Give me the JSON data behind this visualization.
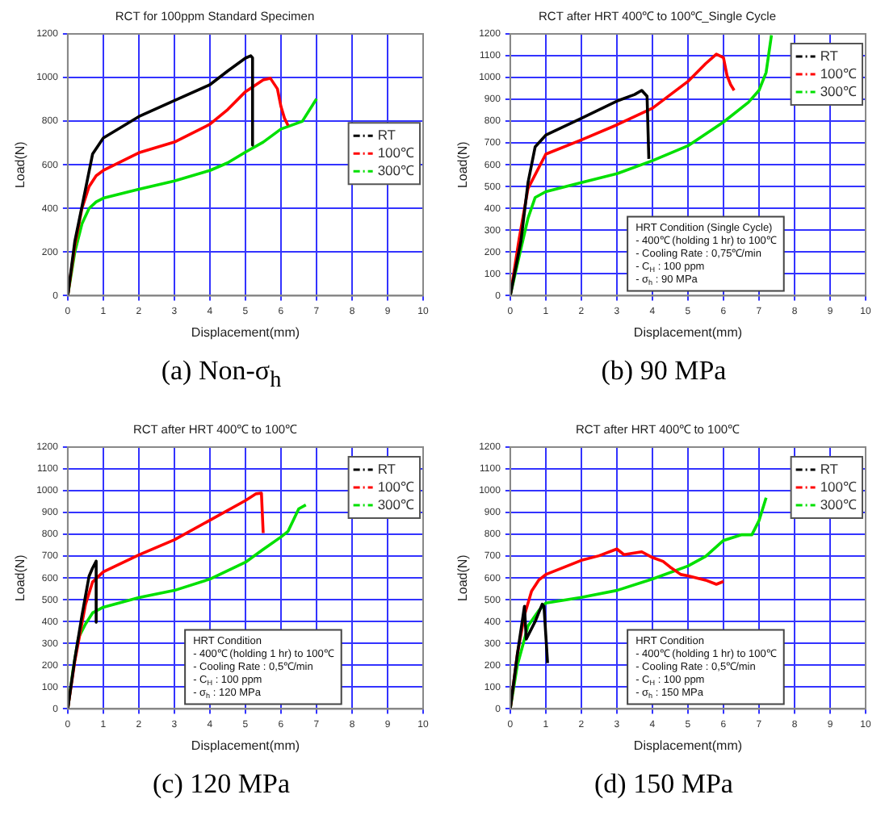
{
  "chart_data": [
    {
      "type": "line",
      "title": "RCT for 100ppm Standard Specimen",
      "subtitle": "(a) Non-σ$_{h}$",
      "xlabel": "Displacement(mm)",
      "ylabel": "Load(N)",
      "xlim": [
        0,
        10
      ],
      "xticks": [
        0,
        1,
        2,
        3,
        4,
        5,
        6,
        7,
        8,
        9,
        10
      ],
      "ylim": [
        0,
        1200
      ],
      "yticks": [
        0,
        200,
        400,
        600,
        800,
        1000,
        1200
      ],
      "grid": true,
      "legend": "right",
      "marker": "none",
      "series": [
        {
          "name": "RT",
          "color": "#000000",
          "x": [
            0,
            0.2,
            0.5,
            0.7,
            1,
            2,
            3,
            4,
            4.5,
            5,
            5.15,
            5.2,
            5.2
          ],
          "values": [
            0,
            250,
            488,
            650,
            723,
            821,
            894,
            967,
            1030,
            1089,
            1100,
            1090,
            690
          ]
        },
        {
          "name": "100℃",
          "color": "#ff0000",
          "x": [
            0,
            0.2,
            0.4,
            0.6,
            0.8,
            1,
            2,
            3,
            4,
            4.5,
            5,
            5.5,
            5.7,
            5.9,
            6,
            6.1,
            6.2
          ],
          "values": [
            0,
            230,
            400,
            500,
            550,
            574,
            655,
            704,
            786,
            853,
            935,
            989,
            997,
            948,
            867,
            813,
            780
          ]
        },
        {
          "name": "300℃",
          "color": "#00e000",
          "x": [
            0,
            0.2,
            0.4,
            0.6,
            0.8,
            1,
            2,
            3,
            4,
            4.5,
            5,
            5.5,
            6,
            6.6,
            7
          ],
          "values": [
            0,
            200,
            330,
            400,
            430,
            447,
            488,
            526,
            574,
            609,
            658,
            704,
            764,
            799,
            902
          ]
        }
      ]
    },
    {
      "type": "line",
      "title": "RCT after HRT 400℃ to 100℃_Single Cycle",
      "subtitle": "(b) 90 MPa",
      "xlabel": "Displacement(mm)",
      "ylabel": "Load(N)",
      "xlim": [
        0,
        10
      ],
      "xticks": [
        0,
        1,
        2,
        3,
        4,
        5,
        6,
        7,
        8,
        9,
        10
      ],
      "ylim": [
        0,
        1200
      ],
      "yticks": [
        0,
        100,
        200,
        300,
        400,
        500,
        600,
        700,
        800,
        900,
        1000,
        1100,
        1200
      ],
      "grid": true,
      "legend": "top right",
      "marker": "none",
      "annotations": [
        "HRT Condition (Single Cycle)",
        "- 400℃ (holding 1 hr) to 100℃",
        "- Cooling Rate : 0,75℃/min",
        "- C$_{H}$ : 100 ppm",
        "- σ$_{h}$ : 90 MPa"
      ],
      "series": [
        {
          "name": "RT",
          "color": "#000000",
          "x": [
            0,
            0.3,
            0.5,
            0.7,
            1,
            2,
            3,
            3.5,
            3.7,
            3.85,
            3.9
          ],
          "values": [
            0,
            250,
            518,
            682,
            736,
            813,
            892,
            922,
            941,
            914,
            627
          ]
        },
        {
          "name": "100℃",
          "color": "#ff0000",
          "x": [
            0,
            0.25,
            0.5,
            1,
            2,
            3,
            4,
            5,
            5.5,
            5.8,
            6,
            6.1,
            6.2,
            6.3
          ],
          "values": [
            0,
            260,
            491,
            649,
            714,
            783,
            859,
            982,
            1064,
            1107,
            1091,
            1009,
            968,
            941
          ]
        },
        {
          "name": "300℃",
          "color": "#00e000",
          "x": [
            0,
            0.25,
            0.5,
            0.7,
            1,
            2,
            3,
            4,
            5,
            6,
            6.7,
            7,
            7.2,
            7.35
          ],
          "values": [
            0,
            180,
            355,
            450,
            477,
            518,
            559,
            619,
            687,
            796,
            886,
            941,
            1023,
            1194
          ]
        }
      ]
    },
    {
      "type": "line",
      "title": "RCT after HRT 400℃ to 100℃",
      "subtitle": "(c) 120 MPa",
      "xlabel": "Displacement(mm)",
      "ylabel": "Load(N)",
      "xlim": [
        0,
        10
      ],
      "xticks": [
        0,
        1,
        2,
        3,
        4,
        5,
        6,
        7,
        8,
        9,
        10
      ],
      "ylim": [
        0,
        1200
      ],
      "yticks": [
        0,
        100,
        200,
        300,
        400,
        500,
        600,
        700,
        800,
        900,
        1000,
        1100,
        1200
      ],
      "grid": true,
      "legend": "top right",
      "marker": "none",
      "annotations": [
        "HRT Condition",
        "- 400℃ (holding 1 hr) to 100℃",
        "- Cooling Rate : 0,5℃/min",
        "- C$_{H}$ : 100 ppm",
        "- σ$_{h}$ : 120 MPa"
      ],
      "series": [
        {
          "name": "RT",
          "color": "#000000",
          "x": [
            0,
            0.2,
            0.4,
            0.5,
            0.6,
            0.7,
            0.8,
            0.8
          ],
          "values": [
            0,
            230,
            428,
            518,
            608,
            646,
            677,
            397
          ]
        },
        {
          "name": "100℃",
          "color": "#ff0000",
          "x": [
            0,
            0.2,
            0.5,
            0.7,
            1,
            2,
            3,
            4,
            5,
            5.3,
            5.45,
            5.5
          ],
          "values": [
            0,
            220,
            479,
            582,
            628,
            706,
            775,
            865,
            955,
            986,
            989,
            806
          ]
        },
        {
          "name": "300℃",
          "color": "#00e000",
          "x": [
            0,
            0.15,
            0.3,
            0.5,
            0.7,
            1,
            2,
            3,
            4,
            5,
            5.5,
            6,
            6.2,
            6.5,
            6.7
          ],
          "values": [
            0,
            180,
            325,
            389,
            440,
            466,
            510,
            543,
            595,
            672,
            731,
            788,
            814,
            917,
            935
          ]
        }
      ]
    },
    {
      "type": "line",
      "title": "RCT after HRT 400℃ to 100℃",
      "subtitle": "(d) 150 MPa",
      "xlabel": "Displacement(mm)",
      "ylabel": "Load(N)",
      "xlim": [
        0,
        10
      ],
      "xticks": [
        0,
        1,
        2,
        3,
        4,
        5,
        6,
        7,
        8,
        9,
        10
      ],
      "ylim": [
        0,
        1200
      ],
      "yticks": [
        0,
        100,
        200,
        300,
        400,
        500,
        600,
        700,
        800,
        900,
        1000,
        1100,
        1200
      ],
      "grid": true,
      "legend": "top right",
      "marker": "none",
      "annotations": [
        "HRT Condition",
        "- 400℃ (holding 1 hr) to 100℃",
        "- Cooling Rate : 0,5℃/min",
        "- C$_{H}$ : 100 ppm",
        "- σ$_{h}$ : 150 MPa"
      ],
      "series": [
        {
          "name": "RT",
          "color": "#000000",
          "x": [
            0,
            0.2,
            0.4,
            0.45,
            0.7,
            0.9,
            0.95,
            1.0,
            1.05
          ],
          "values": [
            0,
            250,
            470,
            320,
            400,
            480,
            470,
            340,
            210
          ]
        },
        {
          "name": "100℃",
          "color": "#ff0000",
          "x": [
            0,
            0.2,
            0.4,
            0.6,
            0.8,
            1,
            2,
            2.5,
            3,
            3.2,
            3.7,
            4,
            4.3,
            4.5,
            4.8,
            5,
            5.5,
            5.8,
            6
          ],
          "values": [
            0,
            250,
            430,
            540,
            590,
            616,
            681,
            702,
            733,
            707,
            720,
            694,
            676,
            650,
            616,
            610,
            590,
            571,
            584
          ]
        },
        {
          "name": "300℃",
          "color": "#00e000",
          "x": [
            0,
            0.2,
            0.5,
            0.8,
            1,
            2,
            3,
            4,
            5,
            5.5,
            6,
            6.5,
            6.8,
            7,
            7.2
          ],
          "values": [
            0,
            200,
            380,
            450,
            485,
            511,
            543,
            595,
            655,
            699,
            772,
            798,
            798,
            863,
            968
          ]
        }
      ]
    }
  ]
}
